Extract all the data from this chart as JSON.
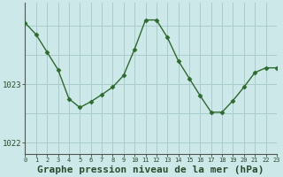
{
  "hours": [
    0,
    1,
    2,
    3,
    4,
    5,
    6,
    7,
    8,
    9,
    10,
    11,
    12,
    13,
    14,
    15,
    16,
    17,
    18,
    19,
    20,
    21,
    22,
    23
  ],
  "pressure": [
    1024.05,
    1023.85,
    1023.55,
    1023.25,
    1022.75,
    1022.6,
    1022.7,
    1022.82,
    1022.95,
    1023.15,
    1023.6,
    1024.1,
    1024.1,
    1023.8,
    1023.4,
    1023.1,
    1022.8,
    1022.52,
    1022.52,
    1022.72,
    1022.95,
    1023.2,
    1023.28,
    1023.28
  ],
  "line_color": "#2d6a2d",
  "marker": "D",
  "marker_size": 2.5,
  "bg_color": "#cce8e8",
  "plot_bg_color": "#cce8e8",
  "grid_color": "#aacccc",
  "xlabel": "Graphe pression niveau de la mer (hPa)",
  "xlabel_fontsize": 8,
  "yticks": [
    1022,
    1023
  ],
  "ylim": [
    1021.8,
    1024.4
  ],
  "xlim": [
    0,
    23
  ],
  "xtick_labels": [
    "0",
    "1",
    "2",
    "3",
    "4",
    "5",
    "6",
    "7",
    "8",
    "9",
    "10",
    "11",
    "12",
    "13",
    "14",
    "15",
    "16",
    "17",
    "18",
    "19",
    "20",
    "21",
    "22",
    "23"
  ]
}
